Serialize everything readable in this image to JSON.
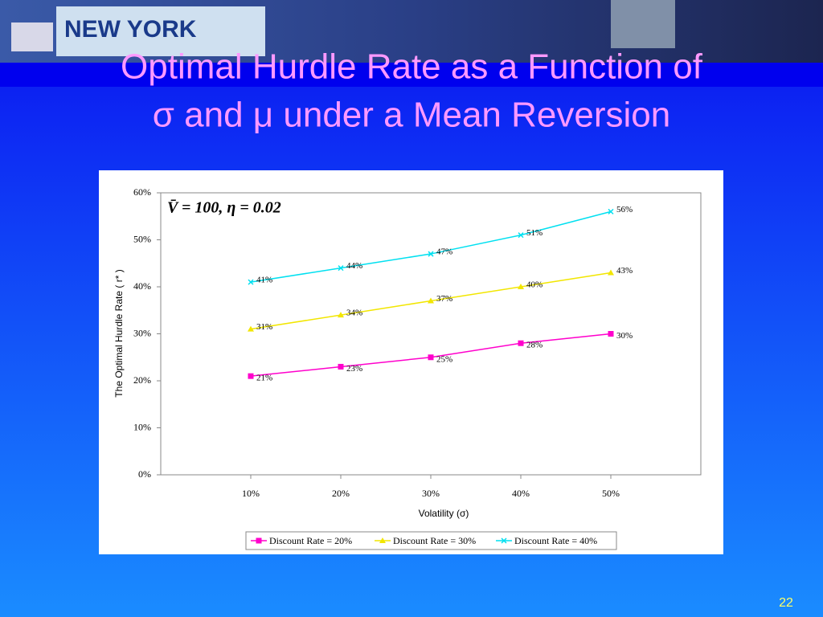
{
  "banner": {
    "text": "NEW YORK"
  },
  "page_number": "22",
  "chart_data": {
    "type": "line",
    "title": [
      "Optimal Hurdle Rate as a Function of",
      "σ  and  μ  under a Mean Reversion"
    ],
    "annotation": "V̄ = 100,  η = 0.02",
    "x_label": "Volatility (σ)",
    "y_label": "The Optimal Hurdle Rate  ( r* )",
    "categories": [
      "10%",
      "20%",
      "30%",
      "40%",
      "50%"
    ],
    "ylim": [
      0,
      60
    ],
    "yticks": [
      {
        "value": 0,
        "label": "0%"
      },
      {
        "value": 10,
        "label": "10%"
      },
      {
        "value": 20,
        "label": "20%"
      },
      {
        "value": 30,
        "label": "30%"
      },
      {
        "value": 40,
        "label": "40%"
      },
      {
        "value": 50,
        "label": "50%"
      },
      {
        "value": 60,
        "label": "60%"
      }
    ],
    "legend": "bottom",
    "series": [
      {
        "name": "Discount Rate = 20%",
        "color": "#ff00cc",
        "marker": "square",
        "values": [
          21,
          23,
          25,
          28,
          30
        ],
        "value_labels": [
          "21%",
          "23%",
          "25%",
          "28%",
          "30%"
        ]
      },
      {
        "name": "Discount Rate = 30%",
        "color": "#f2e600",
        "marker": "triangle",
        "values": [
          31,
          34,
          37,
          40,
          43
        ],
        "value_labels": [
          "31%",
          "34%",
          "37%",
          "40%",
          "43%"
        ]
      },
      {
        "name": "Discount Rate = 40%",
        "color": "#00e0f0",
        "marker": "x",
        "values": [
          41,
          44,
          47,
          51,
          56
        ],
        "value_labels": [
          "41%",
          "44%",
          "47%",
          "51%",
          "56%"
        ]
      }
    ]
  }
}
